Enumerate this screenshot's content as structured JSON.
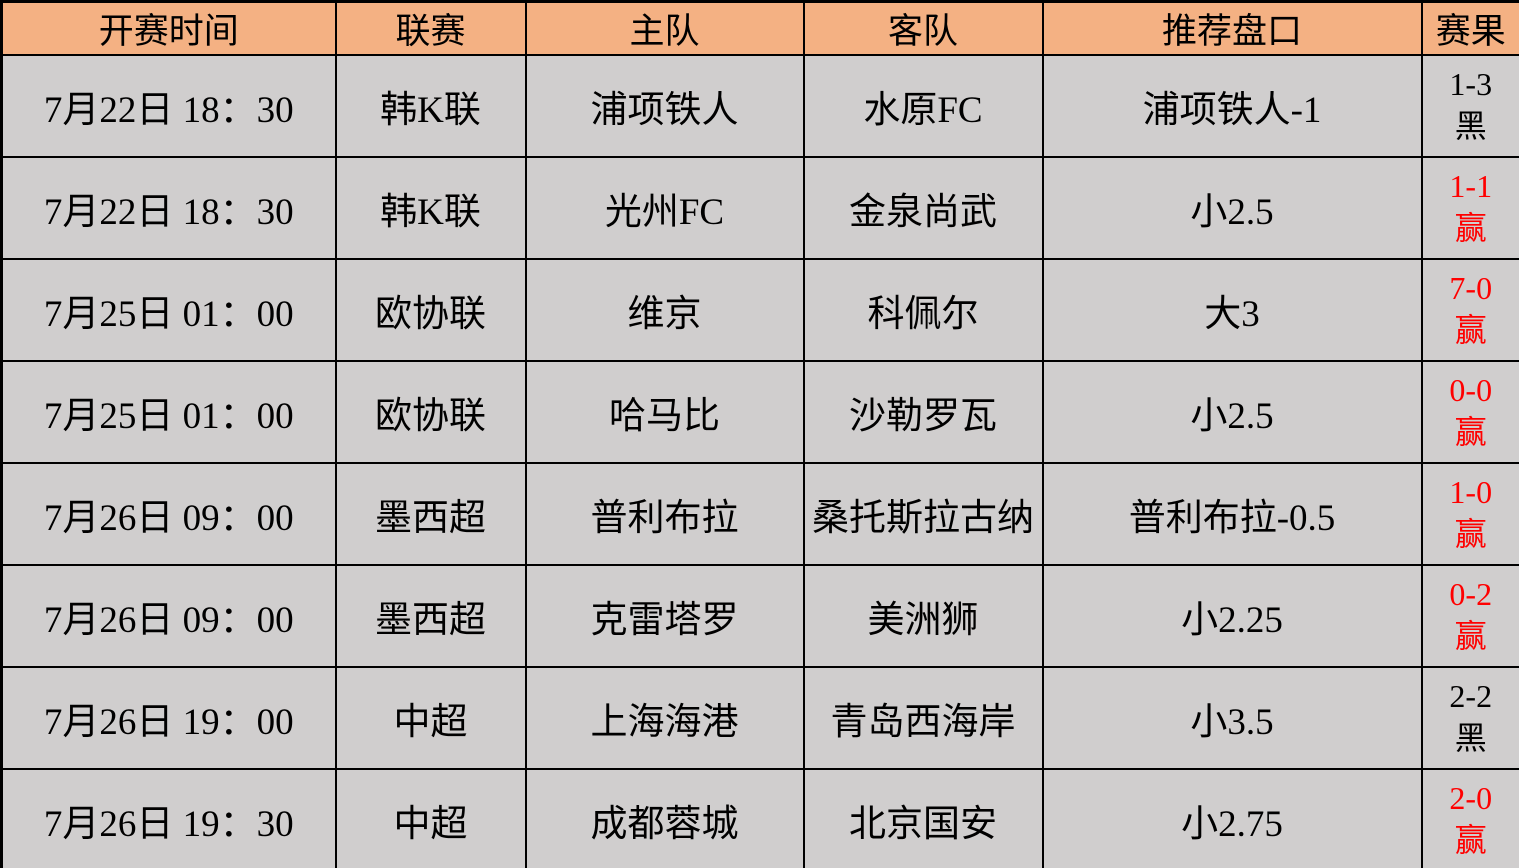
{
  "colors": {
    "header_bg": "#F4B183",
    "body_bg": "#D0CECE",
    "border": "#000000",
    "win_red": "#FF0000",
    "lose_black": "#000000"
  },
  "table": {
    "columns": [
      {
        "key": "time",
        "label": "开赛时间"
      },
      {
        "key": "league",
        "label": "联赛"
      },
      {
        "key": "home",
        "label": "主队"
      },
      {
        "key": "away",
        "label": "客队"
      },
      {
        "key": "handicap",
        "label": "推荐盘口"
      },
      {
        "key": "result",
        "label": "赛果"
      }
    ],
    "rows": [
      {
        "time": "7月22日 18：30",
        "league": "韩K联",
        "home": "浦项铁人",
        "away": "水原FC",
        "handicap": "浦项铁人-1",
        "result_score": "1-3",
        "result_outcome": "黑",
        "result_color": "#000000"
      },
      {
        "time": "7月22日 18：30",
        "league": "韩K联",
        "home": "光州FC",
        "away": "金泉尚武",
        "handicap": "小2.5",
        "result_score": "1-1",
        "result_outcome": "赢",
        "result_color": "#FF0000"
      },
      {
        "time": "7月25日 01：00",
        "league": "欧协联",
        "home": "维京",
        "away": "科佩尔",
        "handicap": "大3",
        "result_score": "7-0",
        "result_outcome": "赢",
        "result_color": "#FF0000"
      },
      {
        "time": "7月25日 01：00",
        "league": "欧协联",
        "home": "哈马比",
        "away": "沙勒罗瓦",
        "handicap": "小2.5",
        "result_score": "0-0",
        "result_outcome": "赢",
        "result_color": "#FF0000"
      },
      {
        "time": "7月26日 09：00",
        "league": "墨西超",
        "home": "普利布拉",
        "away": "桑托斯拉古纳",
        "handicap": "普利布拉-0.5",
        "result_score": "1-0",
        "result_outcome": "赢",
        "result_color": "#FF0000"
      },
      {
        "time": "7月26日 09：00",
        "league": "墨西超",
        "home": "克雷塔罗",
        "away": "美洲狮",
        "handicap": "小2.25",
        "result_score": "0-2",
        "result_outcome": "赢",
        "result_color": "#FF0000"
      },
      {
        "time": "7月26日 19：00",
        "league": "中超",
        "home": "上海海港",
        "away": "青岛西海岸",
        "handicap": "小3.5",
        "result_score": "2-2",
        "result_outcome": "黑",
        "result_color": "#000000"
      },
      {
        "time": "7月26日 19：30",
        "league": "中超",
        "home": "成都蓉城",
        "away": "北京国安",
        "handicap": "小2.75",
        "result_score": "2-0",
        "result_outcome": "赢",
        "result_color": "#FF0000"
      }
    ]
  }
}
